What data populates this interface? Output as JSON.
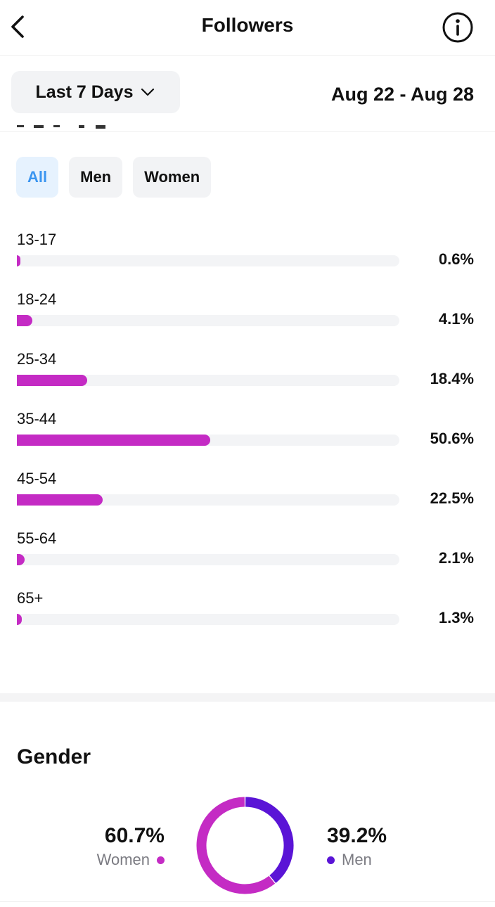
{
  "header": {
    "title": "Followers",
    "back_icon": "chevron-left-icon",
    "info_icon": "info-icon"
  },
  "filter": {
    "range_label": "Last 7 Days",
    "dropdown_icon": "chevron-down-icon",
    "date_range": "Aug 22 - Aug 28"
  },
  "tabs": [
    {
      "label": "All",
      "active": true
    },
    {
      "label": "Men",
      "active": false
    },
    {
      "label": "Women",
      "active": false
    }
  ],
  "chart_data": [
    {
      "type": "bar",
      "orientation": "horizontal",
      "categories": [
        "13-17",
        "18-24",
        "25-34",
        "35-44",
        "45-54",
        "55-64",
        "65+"
      ],
      "values": [
        0.6,
        4.1,
        18.4,
        50.6,
        22.5,
        2.1,
        1.3
      ],
      "value_labels": [
        "0.6%",
        "4.1%",
        "18.4%",
        "50.6%",
        "22.5%",
        "2.1%",
        "1.3%"
      ],
      "xlim": [
        0,
        100
      ],
      "bar_color": "#c42bc4",
      "track_color": "#f3f4f6"
    },
    {
      "type": "pie",
      "title": "Gender",
      "donut": true,
      "categories": [
        "Women",
        "Men"
      ],
      "values": [
        60.7,
        39.2
      ],
      "value_labels": [
        "60.7%",
        "39.2%"
      ],
      "colors": [
        "#c42bc4",
        "#5a14d6"
      ]
    }
  ],
  "colors": {
    "accent_blue": "#3a95f0",
    "magenta": "#c42bc4",
    "purple": "#5a14d6"
  }
}
